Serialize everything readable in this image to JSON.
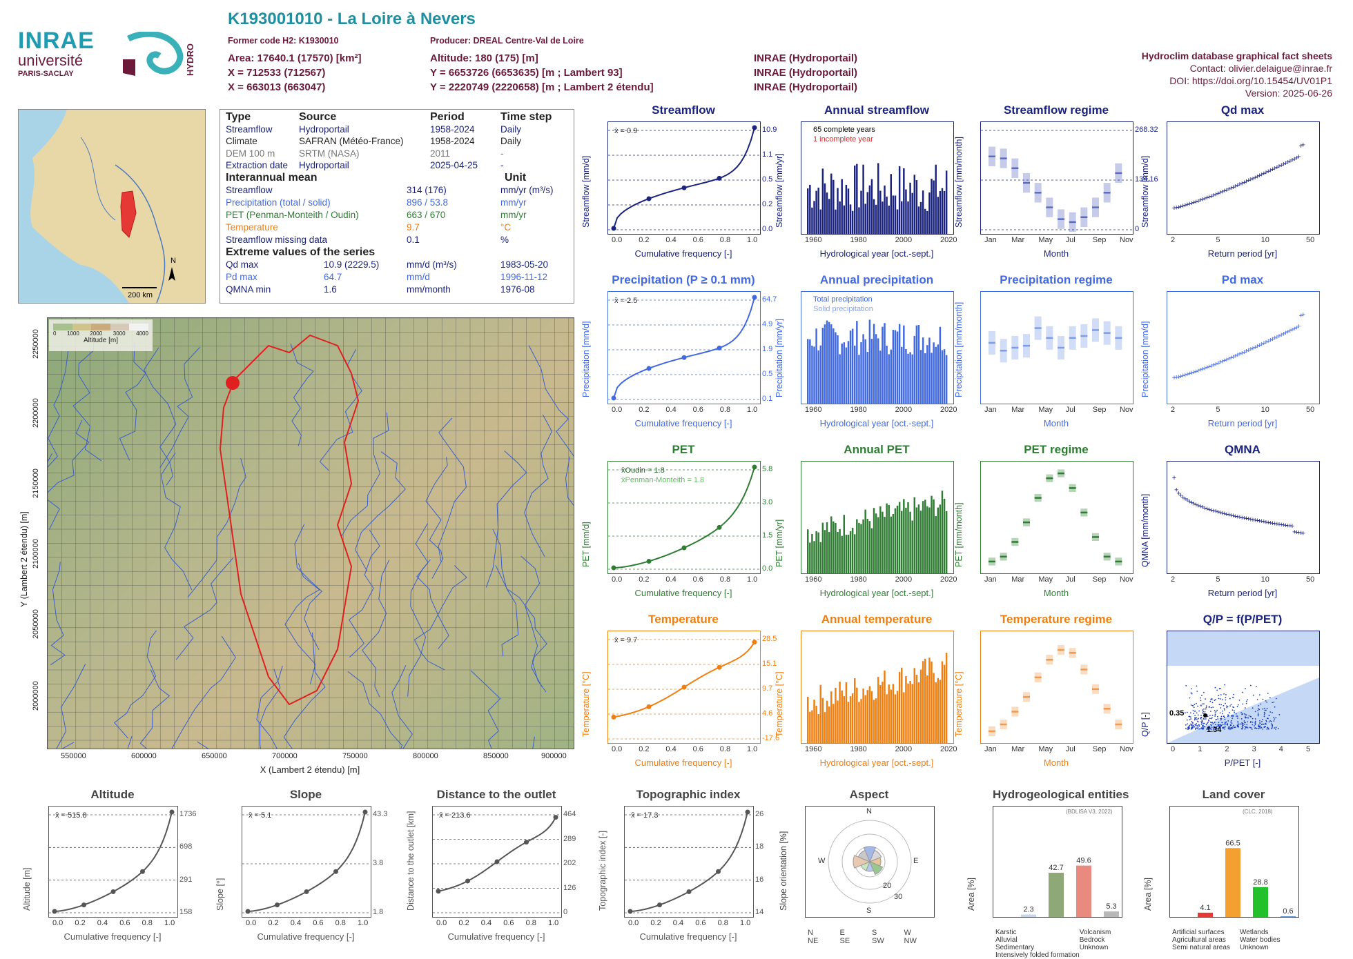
{
  "header": {
    "code": "K193001010 - La Loire à Nevers",
    "former_code": "Former code H2: K1930010",
    "producer": "Producer: DREAL Centre-Val de Loire",
    "area": "Area: 17640.1 (17570) [km²]",
    "x1": "X = 712533 (712567)",
    "x2": "X = 663013 (663047)",
    "altitude": "Altitude: 180 (175) [m]",
    "y1": "Y = 6653726 (6653635) [m ; Lambert 93]",
    "y2": "Y = 2220749 (2220658) [m ; Lambert 2 étendu]",
    "src1": "INRAE (Hydroportail)",
    "src2": "INRAE (Hydroportail)",
    "src3": "INRAE (Hydroportail)",
    "db_title": "Hydroclim database graphical fact sheets",
    "contact": "Contact: olivier.delaigue@inrae.fr",
    "doi": "DOI: https://doi.org/10.15454/UV01P1",
    "version": "Version: 2025-06-26"
  },
  "logos": {
    "inrae": "INRAE",
    "univ1": "université",
    "univ2": "PARIS-SACLAY",
    "hydro": "HYDRO"
  },
  "locator_map": {
    "north": "N",
    "scale": "200 km"
  },
  "table": {
    "head": [
      "Type",
      "Source",
      "Period",
      "Time step"
    ],
    "rows": [
      [
        "Streamflow",
        "Hydroportail",
        "1958-2024",
        "Daily"
      ],
      [
        "Climate",
        "SAFRAN (Météo-France)",
        "1958-2024",
        "Daily"
      ],
      [
        "DEM 100 m",
        "SRTM (NASA)",
        "2011",
        "-"
      ],
      [
        "Extraction date",
        "Hydroportail",
        "2025-04-25",
        "-"
      ]
    ],
    "inter_title": "Interannual mean",
    "unit_title": "Unit",
    "inter": [
      [
        "Streamflow",
        "314 (176)",
        "mm/yr (m³/s)"
      ],
      [
        "Precipitation (total / solid)",
        "896 / 53.8",
        "mm/yr"
      ],
      [
        "PET (Penman-Monteith / Oudin)",
        "663 / 670",
        "mm/yr"
      ],
      [
        "Temperature",
        "9.7",
        "°C"
      ],
      [
        "Streamflow missing data",
        "0.1",
        "%"
      ]
    ],
    "extreme_title": "Extreme values of the series",
    "extreme": [
      [
        "Qd max",
        "10.9 (2229.5)",
        "mm/d (m³/s)",
        "1983-05-20"
      ],
      [
        "Pd max",
        "64.7",
        "mm/d",
        "1996-11-12"
      ],
      [
        "QMNA min",
        "1.6",
        "mm/month",
        "1976-08"
      ]
    ]
  },
  "main_map": {
    "xlabel": "X (Lambert 2 étendu) [m]",
    "ylabel": "Y (Lambert 2 étendu) [m]",
    "xticks": [
      "550000",
      "600000",
      "650000",
      "700000",
      "750000",
      "800000",
      "850000",
      "900000"
    ],
    "yticks": [
      "2250000",
      "2200000",
      "2150000",
      "2100000",
      "2050000",
      "2000000"
    ],
    "legend_ticks": [
      "0",
      "1000",
      "2000",
      "3000",
      "4000"
    ],
    "legend_title": "Altitude [m]"
  },
  "colors": {
    "streamflow": "#1a237e",
    "precip": "#4169e1",
    "pet": "#2e7d32",
    "temp": "#ef7f10",
    "qp": "#1a237e",
    "topo": "#555555"
  },
  "panels": {
    "row1": [
      {
        "title": "Streamflow",
        "xlabel": "Cumulative frequency [-]",
        "ylabel": "Streamflow [mm/d]",
        "note": "x̄ = 0.9",
        "right": [
          "10.9",
          "1.1",
          "0.5",
          "0.2",
          "0.0"
        ]
      },
      {
        "title": "Annual streamflow",
        "xlabel": "Hydrological year [oct.-sept.]",
        "ylabel": "Streamflow [mm/yr]",
        "leg1": "65 complete years",
        "leg2": "1 incomplete year"
      },
      {
        "title": "Streamflow regime",
        "xlabel": "Month",
        "ylabel": "Streamflow [mm/month]",
        "right": [
          "268.32",
          "134.16",
          "0"
        ]
      },
      {
        "title": "Qd max",
        "xlabel": "Return period [yr]",
        "ylabel": "Streamflow [mm/d]"
      }
    ],
    "row2": [
      {
        "title": "Precipitation (P ≥ 0.1 mm)",
        "xlabel": "Cumulative frequency [-]",
        "ylabel": "Precipitation [mm/d]",
        "note": "x̄ = 2.5",
        "right": [
          "64.7",
          "4.9",
          "1.9",
          "0.5",
          "0.1"
        ]
      },
      {
        "title": "Annual precipitation",
        "xlabel": "Hydrological year [oct.-sept.]",
        "ylabel": "Precipitation [mm/yr]",
        "leg1": "Total precipitation",
        "leg2": "Solid precipitation"
      },
      {
        "title": "Precipitation regime",
        "xlabel": "Month",
        "ylabel": "Precipitation [mm/month]"
      },
      {
        "title": "Pd max",
        "xlabel": "Return period [yr]",
        "ylabel": "Precipitation [mm/d]"
      }
    ],
    "row3": [
      {
        "title": "PET",
        "xlabel": "Cumulative frequency [-]",
        "ylabel": "PET [mm/d]",
        "leg1": "x̄Oudin = 1.8",
        "leg2": "x̄Penman-Monteith = 1.8",
        "right": [
          "5.8",
          "3.0",
          "1.5",
          "0.0"
        ]
      },
      {
        "title": "Annual PET",
        "xlabel": "Hydrological year [oct.-sept.]",
        "ylabel": "PET [mm/yr]"
      },
      {
        "title": "PET regime",
        "xlabel": "Month",
        "ylabel": "PET [mm/month]"
      },
      {
        "title": "QMNA",
        "xlabel": "Return period [yr]",
        "ylabel": "QMNA [mm/month]"
      }
    ],
    "row4": [
      {
        "title": "Temperature",
        "xlabel": "Cumulative frequency [-]",
        "ylabel": "Temperature [°C]",
        "note": "x̄ = 9.7",
        "right": [
          "28.5",
          "15.1",
          "9.7",
          "4.6",
          "-17.6"
        ]
      },
      {
        "title": "Annual temperature",
        "xlabel": "Hydrological year [oct.-sept.]",
        "ylabel": "Temperature [°C]"
      },
      {
        "title": "Temperature regime",
        "xlabel": "Month",
        "ylabel": "Temperature [°C]"
      },
      {
        "title": "Q/P = f(P/PET)",
        "xlabel": "P/PET [-]",
        "ylabel": "Q/P [-]",
        "v1": "0.35",
        "v2": "1.34"
      }
    ],
    "row5": [
      {
        "title": "Altitude",
        "xlabel": "Cumulative frequency [-]",
        "ylabel": "Altitude [m]",
        "note": "x̄ = 515.8",
        "right": [
          "1736",
          "698",
          "291",
          "158"
        ]
      },
      {
        "title": "Slope",
        "xlabel": "Cumulative frequency [-]",
        "ylabel": "Slope [°]",
        "note": "x̄ = 5.1",
        "right": [
          "43.3",
          "3.8",
          "1.8"
        ]
      },
      {
        "title": "Distance to the outlet",
        "xlabel": "Cumulative frequency [-]",
        "ylabel": "Distance to the outlet [km]",
        "note": "x̄ = 213.6",
        "right": [
          "464",
          "289",
          "202",
          "126",
          "0"
        ]
      },
      {
        "title": "Topographic index",
        "xlabel": "Cumulative frequency [-]",
        "ylabel": "Topographic index [-]",
        "note": "x̄ = 17.3",
        "right": [
          "26",
          "18",
          "16",
          "14"
        ]
      },
      {
        "title": "Aspect",
        "ylabel": "Slope orientation [%]"
      },
      {
        "title": "Hydrogeological entities",
        "ylabel": "Area [%]",
        "source": "(BDLISA V3, 2022)"
      },
      {
        "title": "Land cover",
        "ylabel": "Area [%]",
        "source": "(CLC, 2018)"
      }
    ]
  },
  "ticks": {
    "freq": [
      "0.0",
      "0.2",
      "0.4",
      "0.6",
      "0.8",
      "1.0"
    ],
    "years": [
      "1960",
      "1980",
      "2000",
      "2020"
    ],
    "months": [
      "Jan",
      "Mar",
      "May",
      "Jul",
      "Sep",
      "Nov"
    ],
    "retp": [
      "2",
      "5",
      "10",
      "50"
    ],
    "qp_x": [
      "0",
      "1",
      "2",
      "3",
      "4",
      "5"
    ],
    "qp_y": [
      "0.0",
      "0.4",
      "0.8",
      "1.2"
    ]
  },
  "aspect_labels": {
    "n": "N",
    "e": "E",
    "s": "S",
    "w": "W",
    "r": [
      "20",
      "30"
    ],
    "legend": [
      "N",
      "E",
      "S",
      "W",
      "NE",
      "SE",
      "SW",
      "NW"
    ]
  },
  "chart_data": [
    {
      "type": "bar",
      "title": "Hydrogeological entities",
      "categories": [
        "Alluvial",
        "Sedimentary",
        "Bedrock",
        "Volcanism"
      ],
      "values": [
        2.3,
        42.7,
        49.6,
        5.3
      ],
      "ylim": [
        0,
        100
      ],
      "legend": [
        "Karstic",
        "Volcanism",
        "Alluvial",
        "Bedrock",
        "Sedimentary",
        "Unknown",
        "Intensively folded formation"
      ]
    },
    {
      "type": "bar",
      "title": "Land cover",
      "categories": [
        "Artificial surfaces",
        "Agricultural areas",
        "Semi natural areas",
        "Water bodies"
      ],
      "values": [
        4.1,
        66.5,
        28.8,
        0.6
      ],
      "ylim": [
        0,
        100
      ],
      "legend": [
        "Artificial surfaces",
        "Wetlands",
        "Agricultural areas",
        "Water bodies",
        "Semi natural areas",
        "Unknown"
      ]
    }
  ]
}
